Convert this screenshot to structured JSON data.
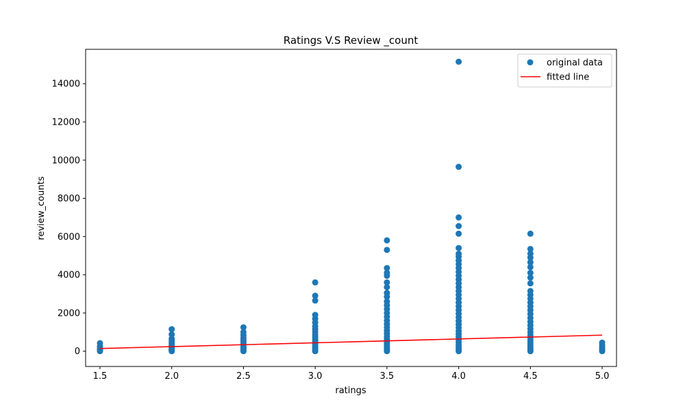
{
  "chart_data": {
    "type": "scatter",
    "title": "Ratings V.S Review _count",
    "xlabel": "ratings",
    "ylabel": "review_counts",
    "xlim": [
      1.4,
      5.1
    ],
    "ylim": [
      -800,
      15800
    ],
    "xticks": [
      1.5,
      2.0,
      2.5,
      3.0,
      3.5,
      4.0,
      4.5,
      5.0
    ],
    "xtick_labels": [
      "1.5",
      "2.0",
      "2.5",
      "3.0",
      "3.5",
      "4.0",
      "4.5",
      "5.0"
    ],
    "yticks": [
      0,
      2000,
      4000,
      6000,
      8000,
      10000,
      12000,
      14000
    ],
    "ytick_labels": [
      "0",
      "2000",
      "4000",
      "6000",
      "8000",
      "10000",
      "12000",
      "14000"
    ],
    "grid": false,
    "legend_position": "top-right",
    "legend": [
      {
        "label": "original data",
        "marker": "circle",
        "color": "#1f77b4"
      },
      {
        "label": "fitted line",
        "marker": "line",
        "color": "#ff0000"
      }
    ],
    "series": [
      {
        "name": "original data",
        "kind": "scatter",
        "color": "#1f77b4",
        "points": [
          {
            "x": 1.5,
            "y": 0
          },
          {
            "x": 1.5,
            "y": 40
          },
          {
            "x": 1.5,
            "y": 90
          },
          {
            "x": 1.5,
            "y": 150
          },
          {
            "x": 1.5,
            "y": 250
          },
          {
            "x": 1.5,
            "y": 420
          },
          {
            "x": 2.0,
            "y": 0
          },
          {
            "x": 2.0,
            "y": 40
          },
          {
            "x": 2.0,
            "y": 90
          },
          {
            "x": 2.0,
            "y": 150
          },
          {
            "x": 2.0,
            "y": 220
          },
          {
            "x": 2.0,
            "y": 300
          },
          {
            "x": 2.0,
            "y": 380
          },
          {
            "x": 2.0,
            "y": 460
          },
          {
            "x": 2.0,
            "y": 550
          },
          {
            "x": 2.0,
            "y": 650
          },
          {
            "x": 2.0,
            "y": 880
          },
          {
            "x": 2.0,
            "y": 1150
          },
          {
            "x": 2.5,
            "y": 0
          },
          {
            "x": 2.5,
            "y": 50
          },
          {
            "x": 2.5,
            "y": 110
          },
          {
            "x": 2.5,
            "y": 180
          },
          {
            "x": 2.5,
            "y": 260
          },
          {
            "x": 2.5,
            "y": 340
          },
          {
            "x": 2.5,
            "y": 420
          },
          {
            "x": 2.5,
            "y": 500
          },
          {
            "x": 2.5,
            "y": 600
          },
          {
            "x": 2.5,
            "y": 700
          },
          {
            "x": 2.5,
            "y": 850
          },
          {
            "x": 2.5,
            "y": 1000
          },
          {
            "x": 2.5,
            "y": 1250
          },
          {
            "x": 3.0,
            "y": 0
          },
          {
            "x": 3.0,
            "y": 60
          },
          {
            "x": 3.0,
            "y": 130
          },
          {
            "x": 3.0,
            "y": 210
          },
          {
            "x": 3.0,
            "y": 300
          },
          {
            "x": 3.0,
            "y": 400
          },
          {
            "x": 3.0,
            "y": 500
          },
          {
            "x": 3.0,
            "y": 600
          },
          {
            "x": 3.0,
            "y": 720
          },
          {
            "x": 3.0,
            "y": 850
          },
          {
            "x": 3.0,
            "y": 1000
          },
          {
            "x": 3.0,
            "y": 1150
          },
          {
            "x": 3.0,
            "y": 1300
          },
          {
            "x": 3.0,
            "y": 1500
          },
          {
            "x": 3.0,
            "y": 1700
          },
          {
            "x": 3.0,
            "y": 1900
          },
          {
            "x": 3.0,
            "y": 2650
          },
          {
            "x": 3.0,
            "y": 2900
          },
          {
            "x": 3.0,
            "y": 3600
          },
          {
            "x": 3.5,
            "y": 0
          },
          {
            "x": 3.5,
            "y": 80
          },
          {
            "x": 3.5,
            "y": 170
          },
          {
            "x": 3.5,
            "y": 270
          },
          {
            "x": 3.5,
            "y": 380
          },
          {
            "x": 3.5,
            "y": 500
          },
          {
            "x": 3.5,
            "y": 630
          },
          {
            "x": 3.5,
            "y": 770
          },
          {
            "x": 3.5,
            "y": 920
          },
          {
            "x": 3.5,
            "y": 1080
          },
          {
            "x": 3.5,
            "y": 1250
          },
          {
            "x": 3.5,
            "y": 1420
          },
          {
            "x": 3.5,
            "y": 1600
          },
          {
            "x": 3.5,
            "y": 1800
          },
          {
            "x": 3.5,
            "y": 2000
          },
          {
            "x": 3.5,
            "y": 2200
          },
          {
            "x": 3.5,
            "y": 2400
          },
          {
            "x": 3.5,
            "y": 2600
          },
          {
            "x": 3.5,
            "y": 2850
          },
          {
            "x": 3.5,
            "y": 3050
          },
          {
            "x": 3.5,
            "y": 3350
          },
          {
            "x": 3.5,
            "y": 3600
          },
          {
            "x": 3.5,
            "y": 3950
          },
          {
            "x": 3.5,
            "y": 4100
          },
          {
            "x": 3.5,
            "y": 4350
          },
          {
            "x": 3.5,
            "y": 5300
          },
          {
            "x": 3.5,
            "y": 5800
          },
          {
            "x": 4.0,
            "y": 0
          },
          {
            "x": 4.0,
            "y": 100
          },
          {
            "x": 4.0,
            "y": 210
          },
          {
            "x": 4.0,
            "y": 330
          },
          {
            "x": 4.0,
            "y": 460
          },
          {
            "x": 4.0,
            "y": 600
          },
          {
            "x": 4.0,
            "y": 750
          },
          {
            "x": 4.0,
            "y": 900
          },
          {
            "x": 4.0,
            "y": 1060
          },
          {
            "x": 4.0,
            "y": 1230
          },
          {
            "x": 4.0,
            "y": 1400
          },
          {
            "x": 4.0,
            "y": 1580
          },
          {
            "x": 4.0,
            "y": 1770
          },
          {
            "x": 4.0,
            "y": 1960
          },
          {
            "x": 4.0,
            "y": 2150
          },
          {
            "x": 4.0,
            "y": 2350
          },
          {
            "x": 4.0,
            "y": 2550
          },
          {
            "x": 4.0,
            "y": 2750
          },
          {
            "x": 4.0,
            "y": 2950
          },
          {
            "x": 4.0,
            "y": 3150
          },
          {
            "x": 4.0,
            "y": 3350
          },
          {
            "x": 4.0,
            "y": 3550
          },
          {
            "x": 4.0,
            "y": 3750
          },
          {
            "x": 4.0,
            "y": 3950
          },
          {
            "x": 4.0,
            "y": 4150
          },
          {
            "x": 4.0,
            "y": 4350
          },
          {
            "x": 4.0,
            "y": 4550
          },
          {
            "x": 4.0,
            "y": 4750
          },
          {
            "x": 4.0,
            "y": 4950
          },
          {
            "x": 4.0,
            "y": 5100
          },
          {
            "x": 4.0,
            "y": 5400
          },
          {
            "x": 4.0,
            "y": 6150
          },
          {
            "x": 4.0,
            "y": 6550
          },
          {
            "x": 4.0,
            "y": 7000
          },
          {
            "x": 4.0,
            "y": 9650
          },
          {
            "x": 4.0,
            "y": 15150
          },
          {
            "x": 4.5,
            "y": 0
          },
          {
            "x": 4.5,
            "y": 90
          },
          {
            "x": 4.5,
            "y": 190
          },
          {
            "x": 4.5,
            "y": 300
          },
          {
            "x": 4.5,
            "y": 420
          },
          {
            "x": 4.5,
            "y": 550
          },
          {
            "x": 4.5,
            "y": 690
          },
          {
            "x": 4.5,
            "y": 840
          },
          {
            "x": 4.5,
            "y": 1000
          },
          {
            "x": 4.5,
            "y": 1170
          },
          {
            "x": 4.5,
            "y": 1350
          },
          {
            "x": 4.5,
            "y": 1540
          },
          {
            "x": 4.5,
            "y": 1740
          },
          {
            "x": 4.5,
            "y": 1950
          },
          {
            "x": 4.5,
            "y": 2150
          },
          {
            "x": 4.5,
            "y": 2350
          },
          {
            "x": 4.5,
            "y": 2550
          },
          {
            "x": 4.5,
            "y": 2750
          },
          {
            "x": 4.5,
            "y": 2950
          },
          {
            "x": 4.5,
            "y": 3150
          },
          {
            "x": 4.5,
            "y": 3550
          },
          {
            "x": 4.5,
            "y": 3850
          },
          {
            "x": 4.5,
            "y": 4100
          },
          {
            "x": 4.5,
            "y": 4400
          },
          {
            "x": 4.5,
            "y": 4650
          },
          {
            "x": 4.5,
            "y": 4900
          },
          {
            "x": 4.5,
            "y": 5100
          },
          {
            "x": 4.5,
            "y": 5350
          },
          {
            "x": 4.5,
            "y": 6150
          },
          {
            "x": 5.0,
            "y": 0
          },
          {
            "x": 5.0,
            "y": 60
          },
          {
            "x": 5.0,
            "y": 130
          },
          {
            "x": 5.0,
            "y": 220
          },
          {
            "x": 5.0,
            "y": 330
          },
          {
            "x": 5.0,
            "y": 450
          }
        ]
      },
      {
        "name": "fitted line",
        "kind": "line",
        "color": "#ff0000",
        "points": [
          {
            "x": 1.5,
            "y": 140
          },
          {
            "x": 5.0,
            "y": 840
          }
        ]
      }
    ]
  }
}
